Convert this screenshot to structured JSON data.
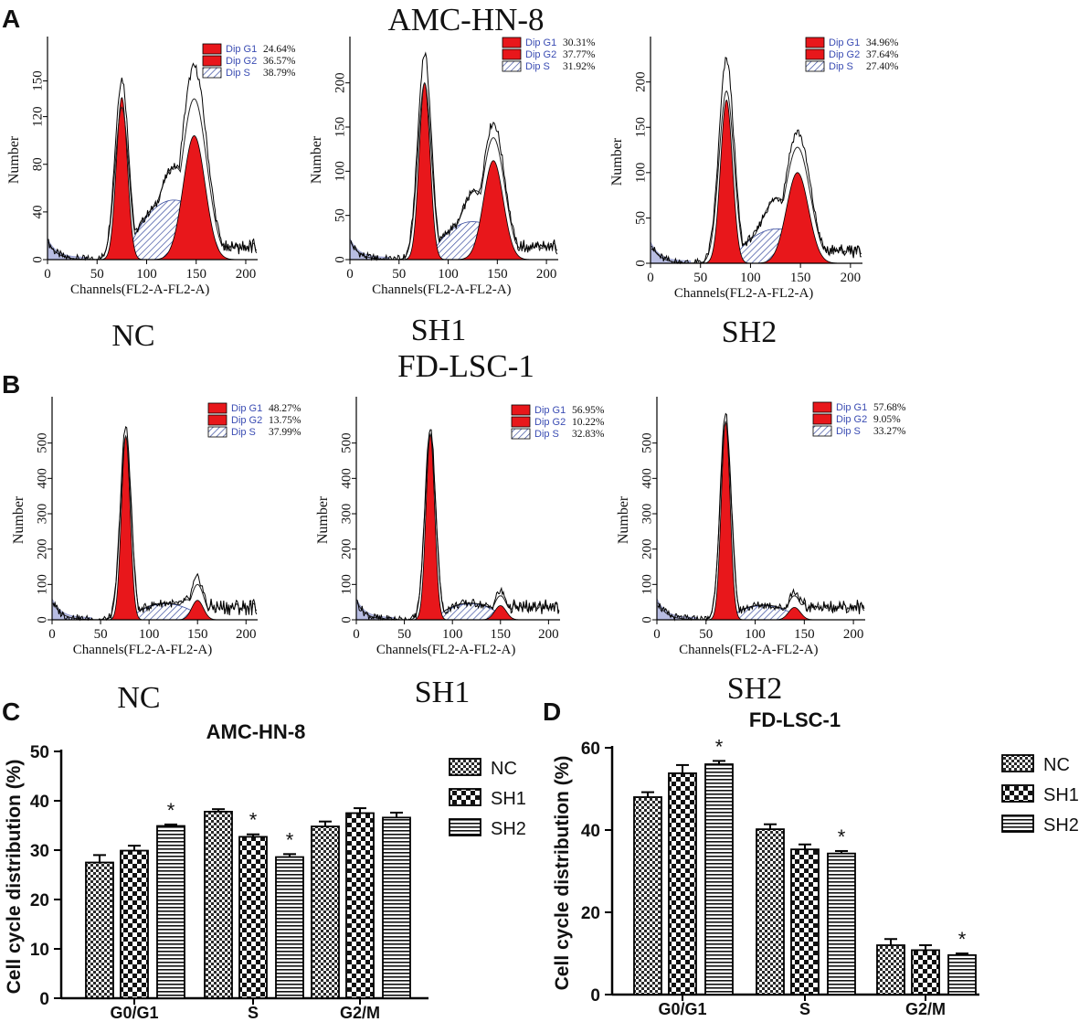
{
  "panel_letters": [
    "A",
    "B",
    "C",
    "D"
  ],
  "row_titles": [
    "AMC-HN-8",
    "FD-LSC-1"
  ],
  "histogram_defaults": {
    "xlabel": "Channels(FL2-A-FL2-A)",
    "ylabel": "Number",
    "xticks": [
      0,
      50,
      100,
      150,
      200
    ],
    "legend_labels": [
      "Dip G1",
      "Dip G2",
      "Dip S"
    ]
  },
  "histograms": [
    {
      "label": "NC",
      "yticks": [
        0,
        40,
        80,
        120,
        150
      ],
      "ymax": 178,
      "percents": [
        "24.64%",
        "36.57%",
        "38.79%"
      ],
      "g1": {
        "h": 136,
        "mu": 75,
        "sd": 5.5
      },
      "g2": {
        "h": 104,
        "mu": 148,
        "sd": 11
      },
      "s": {
        "h": 50,
        "a": 80,
        "b": 175
      },
      "env": [
        128,
        152,
        135,
        162,
        130
      ]
    },
    {
      "label": "SH1",
      "yticks": [
        0,
        50,
        100,
        150,
        200
      ],
      "ymax": 240,
      "percents": [
        "30.31%",
        "37.77%",
        "31.92%"
      ],
      "g1": {
        "h": 200,
        "mu": 76,
        "sd": 5.5
      },
      "g2": {
        "h": 112,
        "mu": 146,
        "sd": 10
      },
      "s": {
        "h": 43,
        "a": 82,
        "b": 168
      },
      "env": [
        200,
        233,
        138,
        155,
        130
      ]
    },
    {
      "label": "SH2",
      "yticks": [
        0,
        50,
        100,
        150,
        200
      ],
      "ymax": 238,
      "percents": [
        "34.96%",
        "37.64%",
        "27.40%"
      ],
      "g1": {
        "h": 180,
        "mu": 76,
        "sd": 6
      },
      "g2": {
        "h": 100,
        "mu": 147,
        "sd": 11
      },
      "s": {
        "h": 38,
        "a": 82,
        "b": 172
      },
      "env": [
        190,
        225,
        128,
        145,
        120
      ]
    },
    {
      "label": "NC",
      "yticks": [
        0,
        100,
        200,
        300,
        400,
        500
      ],
      "ymax": 600,
      "percents": [
        "48.27%",
        "13.75%",
        "37.99%"
      ],
      "g1": {
        "h": 520,
        "mu": 76,
        "sd": 4.5
      },
      "g2": {
        "h": 55,
        "mu": 150,
        "sd": 6
      },
      "s": {
        "h": 45,
        "a": 80,
        "b": 155
      },
      "env": [
        520,
        545,
        100,
        118,
        95
      ]
    },
    {
      "label": "SH1",
      "yticks": [
        0,
        100,
        200,
        300,
        400,
        500
      ],
      "ymax": 600,
      "percents": [
        "56.95%",
        "10.22%",
        "32.83%"
      ],
      "g1": {
        "h": 525,
        "mu": 77,
        "sd": 4.5
      },
      "g2": {
        "h": 40,
        "mu": 150,
        "sd": 6
      },
      "s": {
        "h": 45,
        "a": 82,
        "b": 155
      },
      "env": [
        525,
        545,
        68,
        80,
        60
      ]
    },
    {
      "label": "SH2",
      "yticks": [
        0,
        100,
        200,
        300,
        400,
        500
      ],
      "ymax": 600,
      "percents": [
        "57.68%",
        "9.05%",
        "33.27%"
      ],
      "g1": {
        "h": 560,
        "mu": 70,
        "sd": 4.5
      },
      "g2": {
        "h": 35,
        "mu": 140,
        "sd": 6
      },
      "s": {
        "h": 40,
        "a": 72,
        "b": 145
      },
      "env": [
        560,
        580,
        68,
        80,
        55
      ]
    }
  ],
  "chart_data": [
    {
      "type": "bar",
      "title": "AMC-HN-8",
      "categories": [
        "G0/G1",
        "S",
        "G2/M"
      ],
      "ylabel": "Cell cycle distribution (%)",
      "xlabel": "",
      "ylim": [
        0,
        50
      ],
      "yticks": [
        0,
        10,
        20,
        30,
        40,
        50
      ],
      "series": [
        {
          "name": "NC",
          "values": [
            27.5,
            37.8,
            34.8
          ],
          "errors": [
            1.5,
            0.5,
            1.0
          ]
        },
        {
          "name": "SH1",
          "values": [
            29.9,
            32.7,
            37.5
          ],
          "errors": [
            1.0,
            0.5,
            1.0
          ]
        },
        {
          "name": "SH2",
          "values": [
            34.9,
            28.6,
            36.6
          ],
          "errors": [
            0.3,
            0.6,
            1.0
          ]
        }
      ],
      "significance": [
        [
          false,
          false,
          true
        ],
        [
          false,
          true,
          true
        ],
        [
          false,
          false,
          false
        ]
      ]
    },
    {
      "type": "bar",
      "title": "FD-LSC-1",
      "categories": [
        "G0/G1",
        "S",
        "G2/M"
      ],
      "ylabel": "Cell cycle distribution (%)",
      "xlabel": "",
      "ylim": [
        0,
        60
      ],
      "yticks": [
        0,
        20,
        40,
        60
      ],
      "series": [
        {
          "name": "NC",
          "values": [
            48,
            40.2,
            12
          ],
          "errors": [
            1.2,
            1.2,
            1.5
          ]
        },
        {
          "name": "SH1",
          "values": [
            53.8,
            35.3,
            10.8
          ],
          "errors": [
            2.0,
            1.2,
            1.2
          ]
        },
        {
          "name": "SH2",
          "values": [
            56,
            34.3,
            9.6
          ],
          "errors": [
            0.8,
            0.6,
            0.4
          ]
        }
      ],
      "significance": [
        [
          false,
          false,
          true
        ],
        [
          false,
          false,
          true
        ],
        [
          false,
          false,
          true
        ]
      ]
    }
  ],
  "colors": {
    "red": "#e8171b",
    "hatch": "#3c4fa0",
    "lavender": "#b8bde3",
    "legend_text": "#3a4cb3",
    "black": "#111111"
  }
}
